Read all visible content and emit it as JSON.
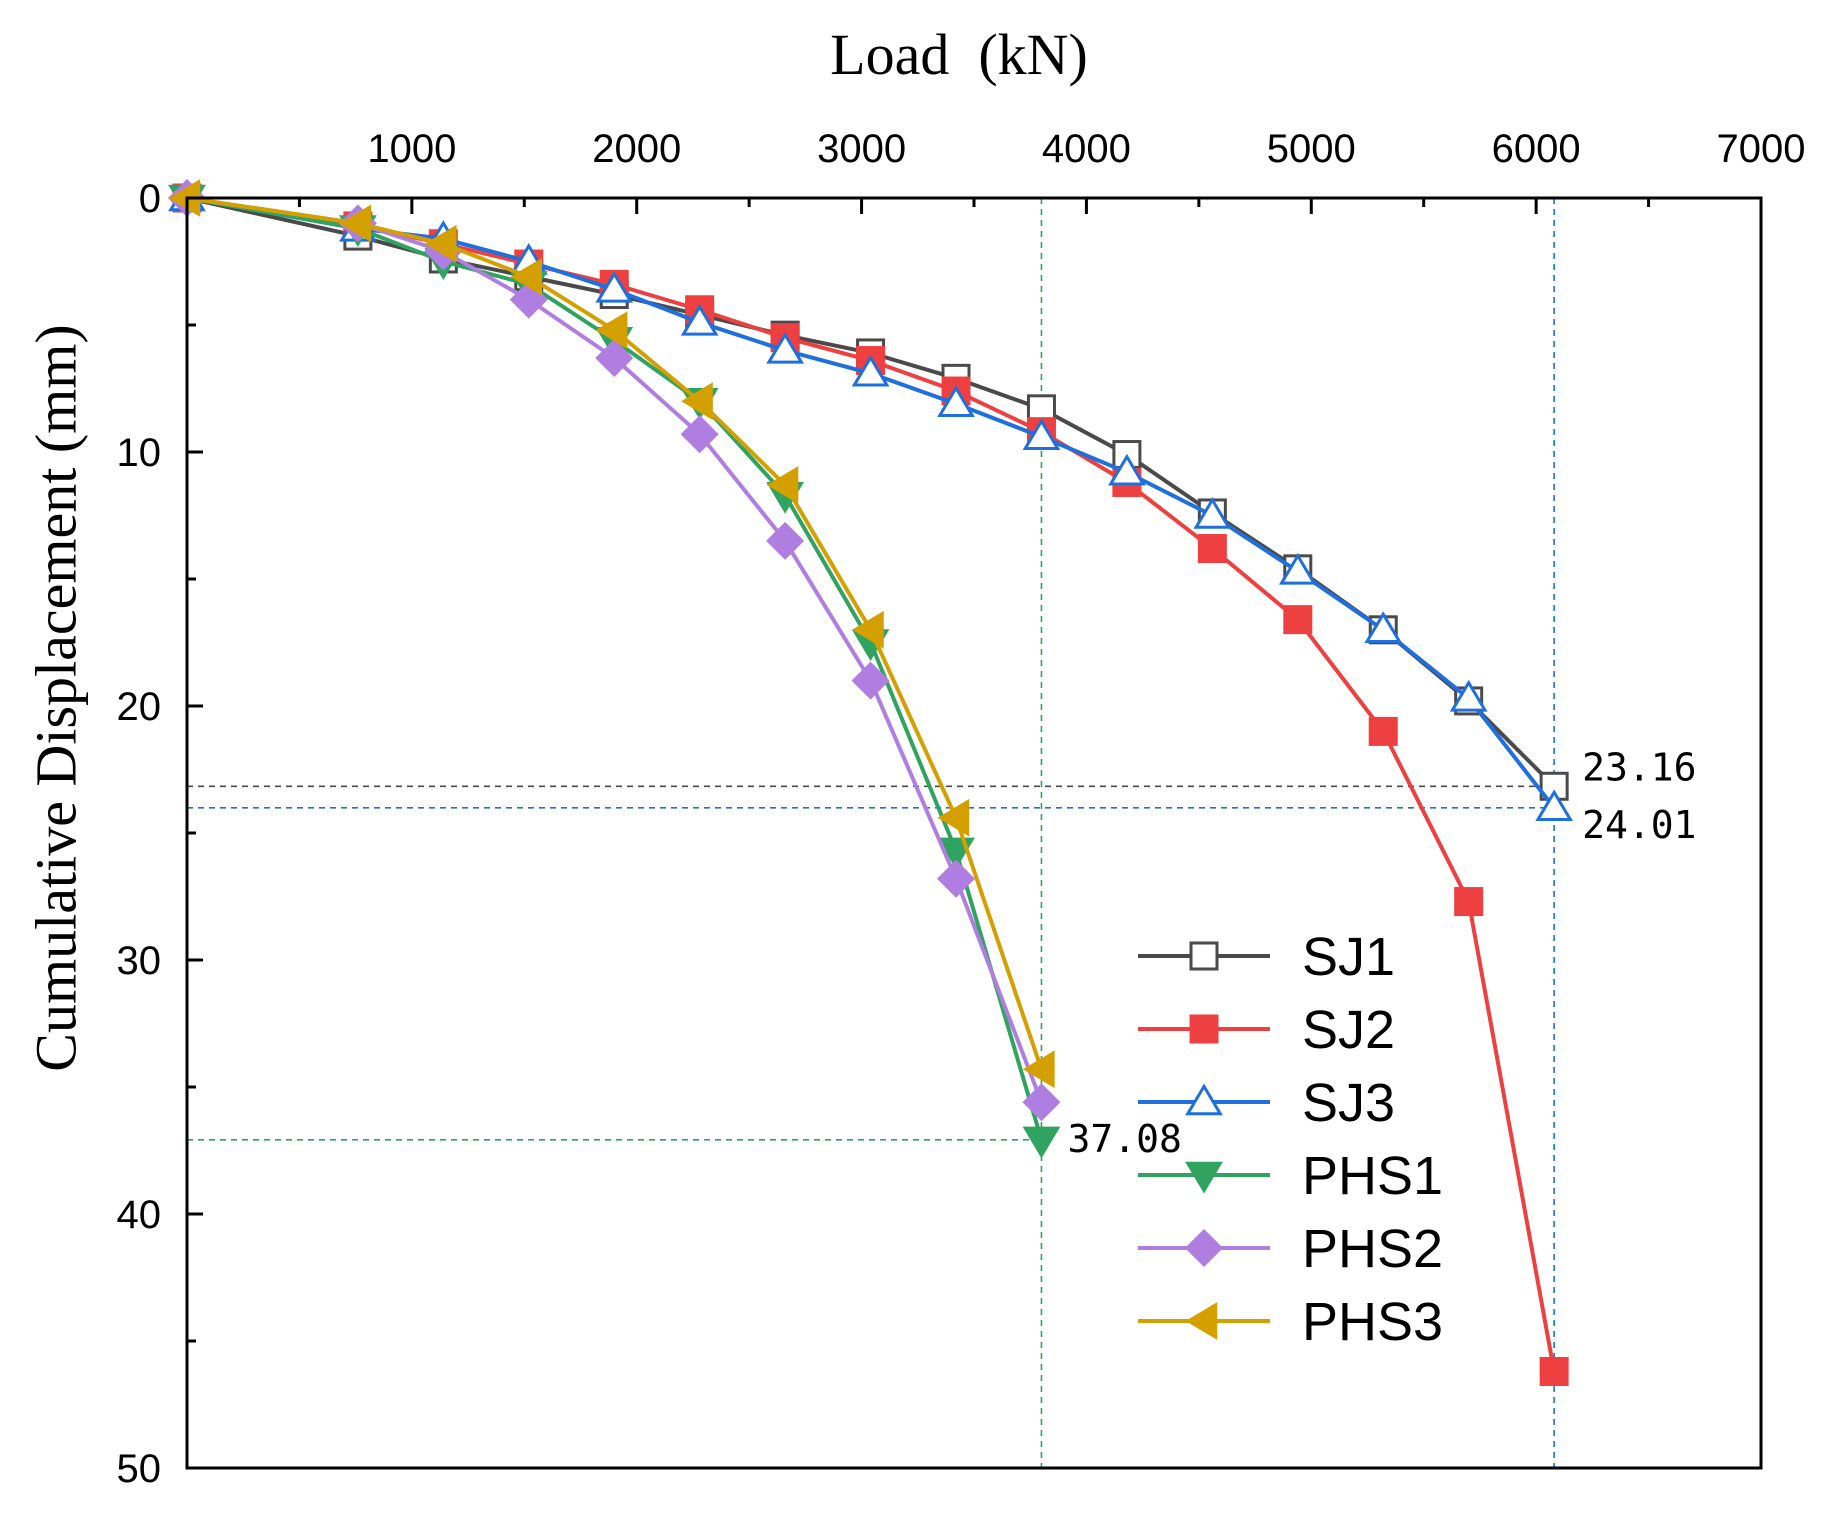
{
  "chart_data": {
    "type": "line",
    "title": "",
    "xlabel": "Load  (kN)",
    "ylabel": "Cumulative Displacement (mm)",
    "xlim": [
      0,
      7000
    ],
    "ylim": [
      0,
      50
    ],
    "y_inverted": true,
    "x_axis_position": "top",
    "x_ticks": [
      1000,
      2000,
      3000,
      4000,
      5000,
      6000,
      7000
    ],
    "x_tick_labels": [
      "1000",
      "2000",
      "3000",
      "4000",
      "5000",
      "6000",
      "7000"
    ],
    "y_ticks": [
      0,
      10,
      20,
      30,
      40,
      50
    ],
    "y_tick_labels": [
      "0",
      "10",
      "20",
      "30",
      "40",
      "50"
    ],
    "grid": false,
    "legend_position": "bottom-right",
    "series": [
      {
        "name": "SJ1",
        "color": "#4a4a4a",
        "marker": "square-open",
        "x": [
          0,
          760,
          1140,
          1520,
          1900,
          2280,
          2660,
          3040,
          3420,
          3800,
          4180,
          4560,
          4940,
          5320,
          5700,
          6080
        ],
        "y": [
          0,
          1.5,
          2.4,
          3.1,
          3.8,
          4.6,
          5.4,
          6.1,
          7.1,
          8.3,
          10.1,
          12.4,
          14.6,
          17.0,
          19.8,
          23.16
        ]
      },
      {
        "name": "SJ2",
        "color": "#ee4040",
        "marker": "square-filled",
        "x": [
          0,
          760,
          1140,
          1520,
          1900,
          2280,
          2660,
          3040,
          3420,
          3800,
          4180,
          4560,
          4940,
          5320,
          5700,
          6080
        ],
        "y": [
          0,
          1.1,
          1.8,
          2.6,
          3.4,
          4.4,
          5.5,
          6.4,
          7.6,
          9.2,
          11.2,
          13.8,
          16.6,
          21.0,
          27.7,
          46.2
        ]
      },
      {
        "name": "SJ3",
        "color": "#1f6fdc",
        "marker": "triangle-up-open",
        "x": [
          0,
          760,
          1140,
          1520,
          1900,
          2280,
          2660,
          3040,
          3420,
          3800,
          4180,
          4560,
          4940,
          5320,
          5700,
          6080
        ],
        "y": [
          0,
          1.2,
          1.6,
          2.5,
          3.6,
          4.9,
          6.0,
          6.9,
          8.1,
          9.4,
          10.8,
          12.5,
          14.7,
          17.0,
          19.7,
          24.01
        ]
      },
      {
        "name": "PHS1",
        "color": "#2fa35f",
        "marker": "triangle-down-filled",
        "x": [
          0,
          760,
          1140,
          1520,
          1900,
          2280,
          2660,
          3040,
          3420,
          3800
        ],
        "y": [
          0,
          1.2,
          2.5,
          3.4,
          5.6,
          8.0,
          11.7,
          17.5,
          25.7,
          37.08
        ]
      },
      {
        "name": "PHS2",
        "color": "#b07ee0",
        "marker": "diamond-filled",
        "x": [
          0,
          760,
          1140,
          1520,
          1900,
          2280,
          2660,
          3040,
          3420,
          3800
        ],
        "y": [
          0,
          1.0,
          2.1,
          4.0,
          6.3,
          9.3,
          13.5,
          19.0,
          26.8,
          35.6
        ]
      },
      {
        "name": "PHS3",
        "color": "#d4a000",
        "marker": "triangle-left-filled",
        "x": [
          0,
          760,
          1140,
          1520,
          1900,
          2280,
          2660,
          3040,
          3420,
          3800
        ],
        "y": [
          0,
          1.0,
          1.8,
          3.1,
          5.2,
          8.0,
          11.3,
          17.0,
          24.4,
          34.3
        ]
      }
    ],
    "reference_lines": [
      {
        "type": "vertical",
        "x": 3800,
        "color": "#2fa35f",
        "series": "PHS1"
      },
      {
        "type": "vertical",
        "x": 6080,
        "color": "#1f6fdc",
        "series": "SJ3"
      },
      {
        "type": "horizontal",
        "y": 23.16,
        "x_end": 6080,
        "color": "#4a4a4a",
        "series": "SJ1"
      },
      {
        "type": "horizontal",
        "y": 24.01,
        "x_end": 6080,
        "color": "#1f6fdc",
        "series": "SJ3"
      },
      {
        "type": "horizontal",
        "y": 37.08,
        "x_end": 3800,
        "color": "#2fa35f",
        "series": "PHS1"
      }
    ],
    "annotations": [
      {
        "text": "23.16",
        "x": 6080,
        "y": 23.16,
        "placement": "right-above"
      },
      {
        "text": "24.01",
        "x": 6080,
        "y": 24.01,
        "placement": "right-below"
      },
      {
        "text": "37.08",
        "x": 3800,
        "y": 37.08,
        "placement": "right"
      }
    ]
  }
}
